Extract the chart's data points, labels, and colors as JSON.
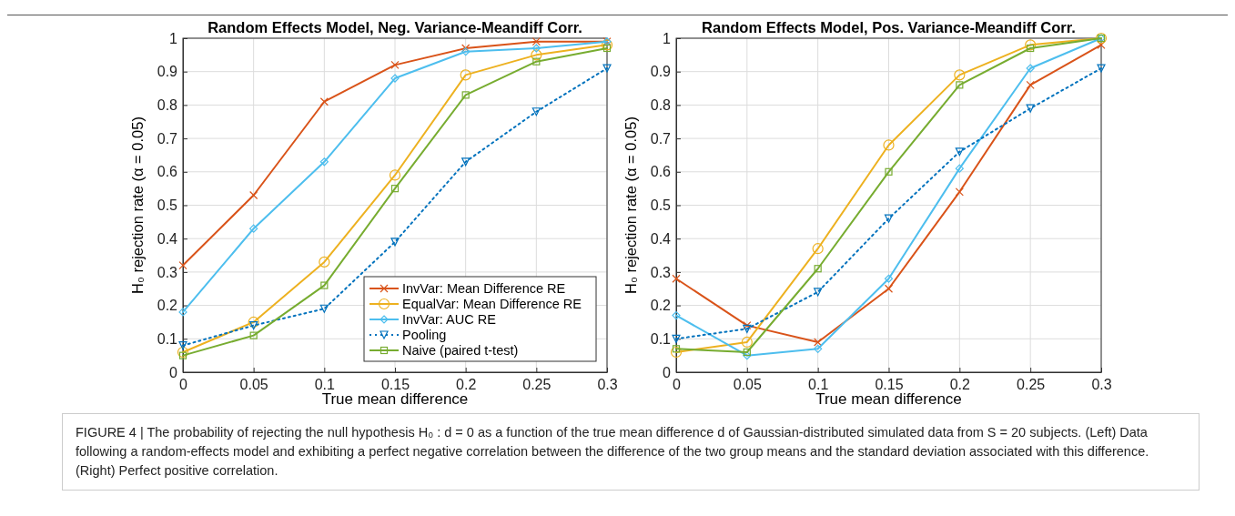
{
  "chart_data": [
    {
      "type": "line",
      "title": "Random Effects Model, Neg. Variance-Meandiff Corr.",
      "xlabel": "True mean difference",
      "ylabel": "H₀ rejection rate (α = 0.05)",
      "x": [
        0,
        0.05,
        0.1,
        0.15,
        0.2,
        0.25,
        0.3
      ],
      "xlim": [
        0,
        0.3
      ],
      "xticks": [
        0,
        0.05,
        0.1,
        0.15,
        0.2,
        0.25,
        0.3
      ],
      "ylim": [
        0,
        1
      ],
      "yticks": [
        0,
        0.1,
        0.2,
        0.3,
        0.4,
        0.5,
        0.6,
        0.7,
        0.8,
        0.9,
        1
      ],
      "grid": true,
      "legend": "bottom right",
      "series": [
        {
          "name": "InvVar: Mean Difference RE",
          "color": "#d95319",
          "marker": "cross",
          "values": [
            0.32,
            0.53,
            0.81,
            0.92,
            0.97,
            0.99,
            0.99
          ]
        },
        {
          "name": "EqualVar: Mean Difference RE",
          "color": "#edb120",
          "marker": "circle",
          "values": [
            0.06,
            0.15,
            0.33,
            0.59,
            0.89,
            0.95,
            0.98
          ]
        },
        {
          "name": "InvVar: AUC RE",
          "color": "#4dbeee",
          "marker": "diamond",
          "values": [
            0.18,
            0.43,
            0.63,
            0.88,
            0.96,
            0.97,
            0.99
          ]
        },
        {
          "name": "Pooling",
          "color": "#0072bd",
          "marker": "triangle",
          "line_style": "dotted",
          "values": [
            0.08,
            0.14,
            0.19,
            0.39,
            0.63,
            0.78,
            0.91
          ]
        },
        {
          "name": "Naive (paired t-test)",
          "color": "#77ac30",
          "marker": "square",
          "values": [
            0.05,
            0.11,
            0.26,
            0.55,
            0.83,
            0.93,
            0.97
          ]
        }
      ],
      "annotations": [
        "FIGURE 4 | The probability of rejecting the null hypothesis H₀ : d = 0 as a function of the true mean difference d of Gaussian-distributed simulated data from S = 20 subjects. (Left) Data following a random-effects model and exhibiting a perfect negative correlation between the difference of the two group means and the standard deviation associated with this difference. (Right) Perfect positive correlation."
      ]
    },
    {
      "type": "line",
      "title": "Random Effects Model, Pos. Variance-Meandiff Corr.",
      "xlabel": "True mean difference",
      "ylabel": "H₀ rejection rate (α = 0.05)",
      "x": [
        0,
        0.05,
        0.1,
        0.15,
        0.2,
        0.25,
        0.3
      ],
      "xlim": [
        0,
        0.3
      ],
      "xticks": [
        0,
        0.05,
        0.1,
        0.15,
        0.2,
        0.25,
        0.3
      ],
      "ylim": [
        0,
        1
      ],
      "yticks": [
        0,
        0.1,
        0.2,
        0.3,
        0.4,
        0.5,
        0.6,
        0.7,
        0.8,
        0.9,
        1
      ],
      "grid": true,
      "series": [
        {
          "color": "#d95319",
          "marker": "cross",
          "values": [
            0.28,
            0.14,
            0.09,
            0.25,
            0.54,
            0.86,
            0.98
          ]
        },
        {
          "color": "#edb120",
          "marker": "circle",
          "values": [
            0.06,
            0.09,
            0.37,
            0.68,
            0.89,
            0.98,
            1.0
          ]
        },
        {
          "color": "#4dbeee",
          "marker": "diamond",
          "values": [
            0.17,
            0.05,
            0.07,
            0.28,
            0.61,
            0.91,
            1.0
          ]
        },
        {
          "color": "#0072bd",
          "marker": "triangle",
          "line_style": "dotted",
          "values": [
            0.1,
            0.13,
            0.24,
            0.46,
            0.66,
            0.79,
            0.91
          ]
        },
        {
          "color": "#77ac30",
          "marker": "square",
          "values": [
            0.07,
            0.06,
            0.31,
            0.6,
            0.86,
            0.97,
            1.0
          ]
        }
      ]
    }
  ]
}
